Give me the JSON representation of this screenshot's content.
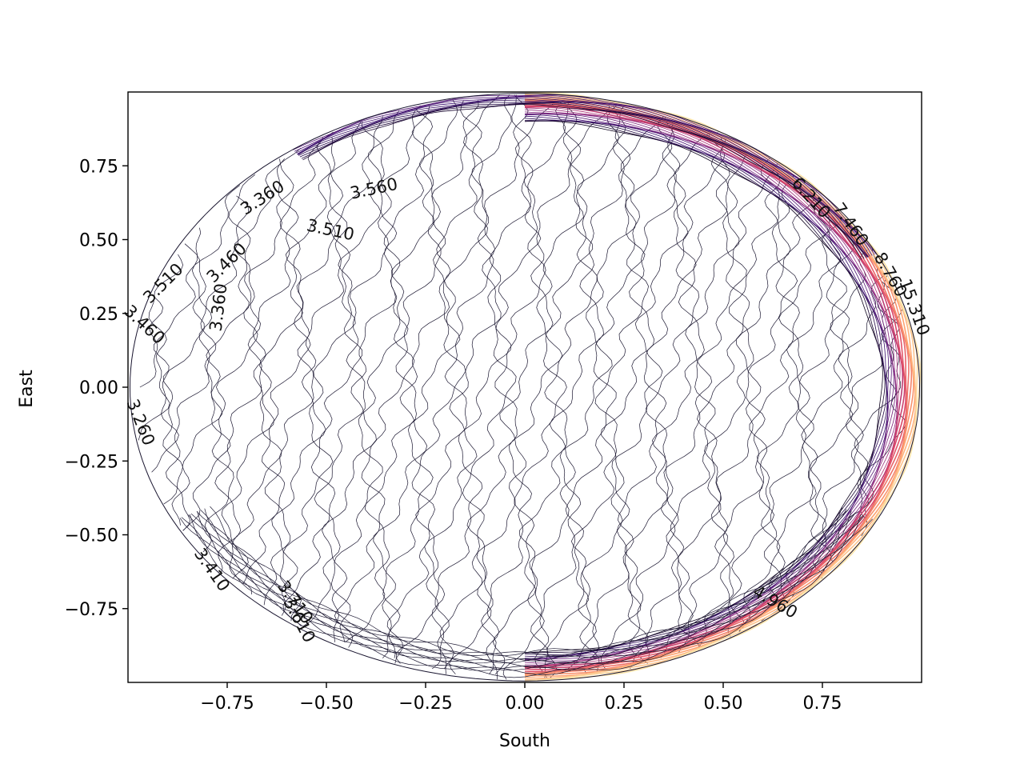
{
  "chart_data": {
    "type": "contour",
    "xlabel": "South",
    "ylabel": "East",
    "xlim": [
      -1.0,
      1.0
    ],
    "ylim": [
      -1.0,
      1.0
    ],
    "xticks": [
      -0.75,
      -0.5,
      -0.25,
      0.0,
      0.25,
      0.5,
      0.75
    ],
    "xtick_labels": [
      "−0.75",
      "−0.50",
      "−0.25",
      "0.00",
      "0.25",
      "0.50",
      "0.75"
    ],
    "yticks": [
      -0.75,
      -0.5,
      -0.25,
      0.0,
      0.25,
      0.5,
      0.75
    ],
    "ytick_labels": [
      "−0.75",
      "−0.50",
      "−0.25",
      "0.00",
      "0.25",
      "0.50",
      "0.75"
    ],
    "grid": false,
    "legend": "none",
    "colormap": [
      "#000004",
      "#3b0f70",
      "#8c2981",
      "#de4968",
      "#fe9f6d",
      "#fcfdbf"
    ],
    "domain": "unit-disk",
    "contour_levels_min": 3.21,
    "contour_levels_step": 0.05,
    "contour_labels": [
      {
        "text": "3.360",
        "x": -0.66,
        "y": 0.64,
        "angle": -33
      },
      {
        "text": "3.560",
        "x": -0.38,
        "y": 0.67,
        "angle": -12
      },
      {
        "text": "3.510",
        "x": -0.49,
        "y": 0.53,
        "angle": 12
      },
      {
        "text": "3.460",
        "x": -0.75,
        "y": 0.42,
        "angle": -45
      },
      {
        "text": "3.510",
        "x": -0.91,
        "y": 0.35,
        "angle": -45
      },
      {
        "text": "3.360",
        "x": -0.77,
        "y": 0.27,
        "angle": -83
      },
      {
        "text": "3.460",
        "x": -0.96,
        "y": 0.21,
        "angle": 43
      },
      {
        "text": "3.260",
        "x": -0.97,
        "y": -0.12,
        "angle": 68
      },
      {
        "text": "3.410",
        "x": -0.79,
        "y": -0.62,
        "angle": 55
      },
      {
        "text": "3.710",
        "x": -0.58,
        "y": -0.73,
        "angle": 55
      },
      {
        "text": "3.610",
        "x": -0.57,
        "y": -0.79,
        "angle": 62
      },
      {
        "text": "4.960",
        "x": 0.63,
        "y": -0.73,
        "angle": 30
      },
      {
        "text": "6.210",
        "x": 0.72,
        "y": 0.64,
        "angle": 48
      },
      {
        "text": "7.460",
        "x": 0.82,
        "y": 0.55,
        "angle": 55
      },
      {
        "text": "8.760",
        "x": 0.92,
        "y": 0.38,
        "angle": 60
      },
      {
        "text": "15.310",
        "x": 0.98,
        "y": 0.27,
        "angle": 70
      }
    ]
  }
}
